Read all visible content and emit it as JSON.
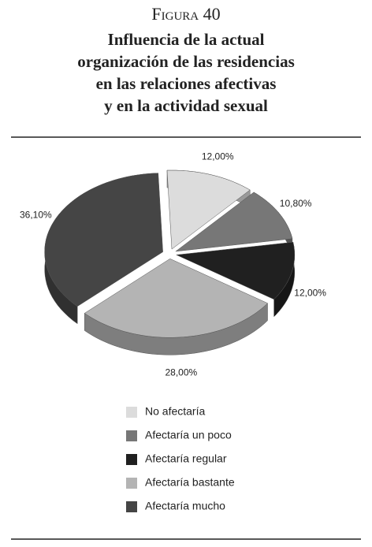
{
  "chart_data": {
    "type": "pie",
    "figure_label": "Figura 40",
    "title": [
      "Influencia de la actual",
      "organización de las residencias",
      "en las relaciones afectivas",
      "y en la actividad sexual"
    ],
    "categories": [
      "No afectaría",
      "Afectaría un poco",
      "Afectaría regular",
      "Afectaría bastante",
      "Afectaría mucho"
    ],
    "values": [
      12.0,
      10.8,
      12.0,
      28.0,
      36.1
    ],
    "value_labels": [
      "12,00%",
      "10,80%",
      "12,00%",
      "28,00%",
      "36,10%"
    ],
    "colors": [
      "#dcdcdc",
      "#777777",
      "#202020",
      "#b4b4b4",
      "#454545"
    ]
  }
}
